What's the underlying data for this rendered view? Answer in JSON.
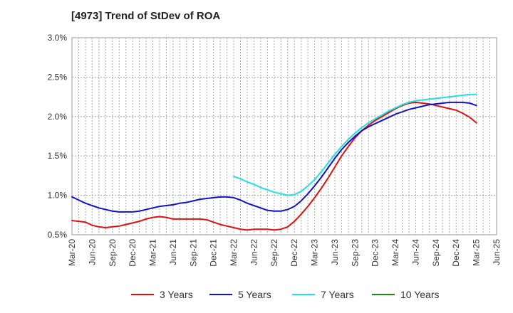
{
  "title": "[4973]  Trend of StDev of ROA",
  "chart_data": {
    "type": "line",
    "title": "[4973]  Trend of StDev of ROA",
    "xlabel": "",
    "ylabel": "",
    "ylim": [
      0.5,
      3.0
    ],
    "yticks": [
      "0.5%",
      "1.0%",
      "1.5%",
      "2.0%",
      "2.5%",
      "3.0%"
    ],
    "ytick_values": [
      0.5,
      1.0,
      1.5,
      2.0,
      2.5,
      3.0
    ],
    "x_ticks": [
      "Mar-20",
      "Jun-20",
      "Sep-20",
      "Dec-20",
      "Mar-21",
      "Jun-21",
      "Sep-21",
      "Dec-21",
      "Mar-22",
      "Jun-22",
      "Sep-22",
      "Dec-22",
      "Mar-23",
      "Jun-23",
      "Sep-23",
      "Dec-23",
      "Mar-24",
      "Jun-24",
      "Sep-24",
      "Dec-24",
      "Mar-25",
      "Jun-25"
    ],
    "months": [
      "2020-03",
      "2020-04",
      "2020-05",
      "2020-06",
      "2020-07",
      "2020-08",
      "2020-09",
      "2020-10",
      "2020-11",
      "2020-12",
      "2021-01",
      "2021-02",
      "2021-03",
      "2021-04",
      "2021-05",
      "2021-06",
      "2021-07",
      "2021-08",
      "2021-09",
      "2021-10",
      "2021-11",
      "2021-12",
      "2022-01",
      "2022-02",
      "2022-03",
      "2022-04",
      "2022-05",
      "2022-06",
      "2022-07",
      "2022-08",
      "2022-09",
      "2022-10",
      "2022-11",
      "2022-12",
      "2023-01",
      "2023-02",
      "2023-03",
      "2023-04",
      "2023-05",
      "2023-06",
      "2023-07",
      "2023-08",
      "2023-09",
      "2023-10",
      "2023-11",
      "2023-12",
      "2024-01",
      "2024-02",
      "2024-03",
      "2024-04",
      "2024-05",
      "2024-06",
      "2024-07",
      "2024-08",
      "2024-09",
      "2024-10",
      "2024-11",
      "2024-12",
      "2025-01",
      "2025-02",
      "2025-03",
      "2025-04",
      "2025-05",
      "2025-06"
    ],
    "grid": true,
    "legend_position": "bottom",
    "series": [
      {
        "name": "3 Years",
        "color": "#dd1111",
        "values": [
          0.68,
          0.67,
          0.66,
          0.62,
          0.6,
          0.59,
          0.6,
          0.61,
          0.63,
          0.65,
          0.67,
          0.7,
          0.72,
          0.73,
          0.72,
          0.7,
          0.7,
          0.7,
          0.7,
          0.7,
          0.69,
          0.66,
          0.63,
          0.61,
          0.59,
          0.57,
          0.56,
          0.57,
          0.57,
          0.57,
          0.56,
          0.57,
          0.6,
          0.67,
          0.76,
          0.86,
          0.97,
          1.09,
          1.22,
          1.36,
          1.5,
          1.62,
          1.73,
          1.82,
          1.89,
          1.95,
          2.0,
          2.05,
          2.1,
          2.14,
          2.17,
          2.18,
          2.17,
          2.16,
          2.14,
          2.12,
          2.1,
          2.08,
          2.04,
          1.99,
          1.92,
          null,
          null,
          null
        ]
      },
      {
        "name": "5 Years",
        "color": "#1111cc",
        "values": [
          0.98,
          0.94,
          0.9,
          0.87,
          0.84,
          0.82,
          0.8,
          0.79,
          0.79,
          0.79,
          0.8,
          0.82,
          0.84,
          0.86,
          0.87,
          0.88,
          0.9,
          0.91,
          0.93,
          0.95,
          0.96,
          0.97,
          0.98,
          0.98,
          0.97,
          0.94,
          0.9,
          0.87,
          0.84,
          0.81,
          0.8,
          0.8,
          0.82,
          0.86,
          0.93,
          1.02,
          1.12,
          1.23,
          1.35,
          1.47,
          1.58,
          1.67,
          1.75,
          1.82,
          1.87,
          1.91,
          1.95,
          1.99,
          2.03,
          2.06,
          2.09,
          2.11,
          2.13,
          2.15,
          2.16,
          2.17,
          2.18,
          2.18,
          2.18,
          2.17,
          2.14,
          null,
          null,
          null
        ]
      },
      {
        "name": "7 Years",
        "color": "#22e0e0",
        "values": [
          null,
          null,
          null,
          null,
          null,
          null,
          null,
          null,
          null,
          null,
          null,
          null,
          null,
          null,
          null,
          null,
          null,
          null,
          null,
          null,
          null,
          null,
          null,
          null,
          1.24,
          1.21,
          1.17,
          1.14,
          1.1,
          1.07,
          1.04,
          1.02,
          1.0,
          1.01,
          1.05,
          1.12,
          1.2,
          1.3,
          1.41,
          1.52,
          1.62,
          1.71,
          1.79,
          1.86,
          1.92,
          1.97,
          2.02,
          2.07,
          2.11,
          2.15,
          2.18,
          2.2,
          2.21,
          2.22,
          2.23,
          2.24,
          2.25,
          2.26,
          2.27,
          2.28,
          2.28,
          null,
          null,
          null
        ]
      },
      {
        "name": "10 Years",
        "color": "#228822",
        "values": [
          null,
          null,
          null,
          null,
          null,
          null,
          null,
          null,
          null,
          null,
          null,
          null,
          null,
          null,
          null,
          null,
          null,
          null,
          null,
          null,
          null,
          null,
          null,
          null,
          null,
          null,
          null,
          null,
          null,
          null,
          null,
          null,
          null,
          null,
          null,
          null,
          null,
          null,
          null,
          null,
          null,
          null,
          null,
          null,
          null,
          null,
          null,
          null,
          null,
          null,
          null,
          null,
          null,
          null,
          null,
          null,
          null,
          null,
          null,
          null,
          null,
          null,
          null,
          null
        ]
      }
    ]
  }
}
